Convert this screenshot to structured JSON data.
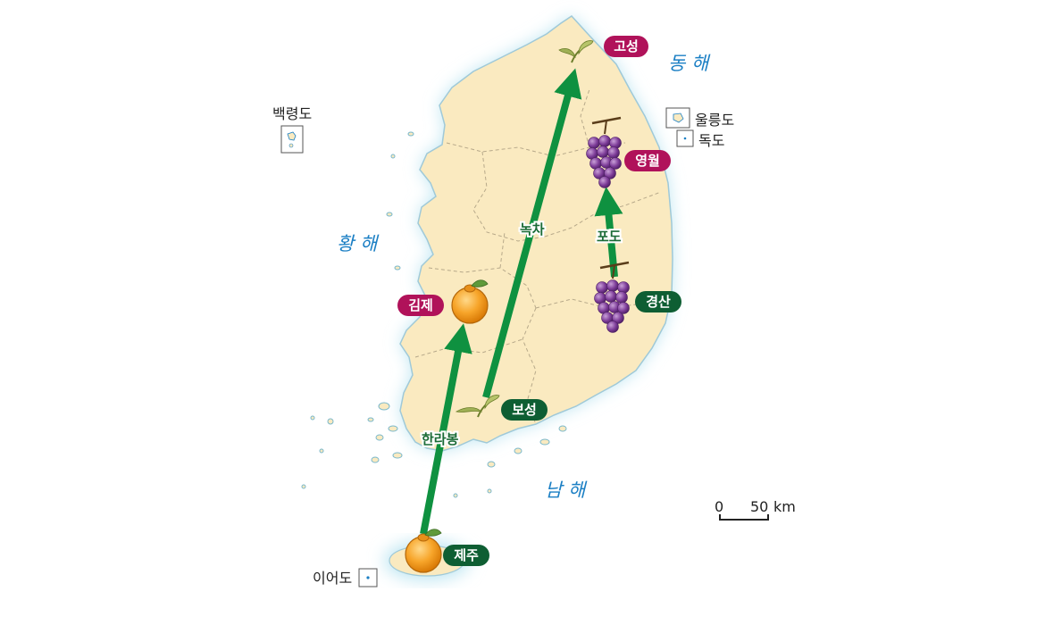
{
  "seas": {
    "east": "동 해",
    "west": "황 해",
    "south": "남 해"
  },
  "islands": {
    "baengnyeong": "백령도",
    "ulleung": "울릉도",
    "dokdo": "독도",
    "ieo": "이어도"
  },
  "regions": {
    "goseong": "고성",
    "yeongwol": "영월",
    "gyeongsan": "경산",
    "gimje": "김제",
    "boseong": "보성",
    "jeju": "제주"
  },
  "region_colors": {
    "origin": "#b0125a",
    "destination": "#0e5e33"
  },
  "crops": {
    "green_tea": "녹차",
    "grape": "포도",
    "hallabong": "한라봉"
  },
  "crop_icons": {
    "green_tea": "tea-sprout-icon",
    "grape": "grape-icon",
    "hallabong": "hallabong-icon"
  },
  "arrow_color": "#0f9140",
  "scale": {
    "zero": "0",
    "fifty": "50",
    "unit": "km"
  }
}
